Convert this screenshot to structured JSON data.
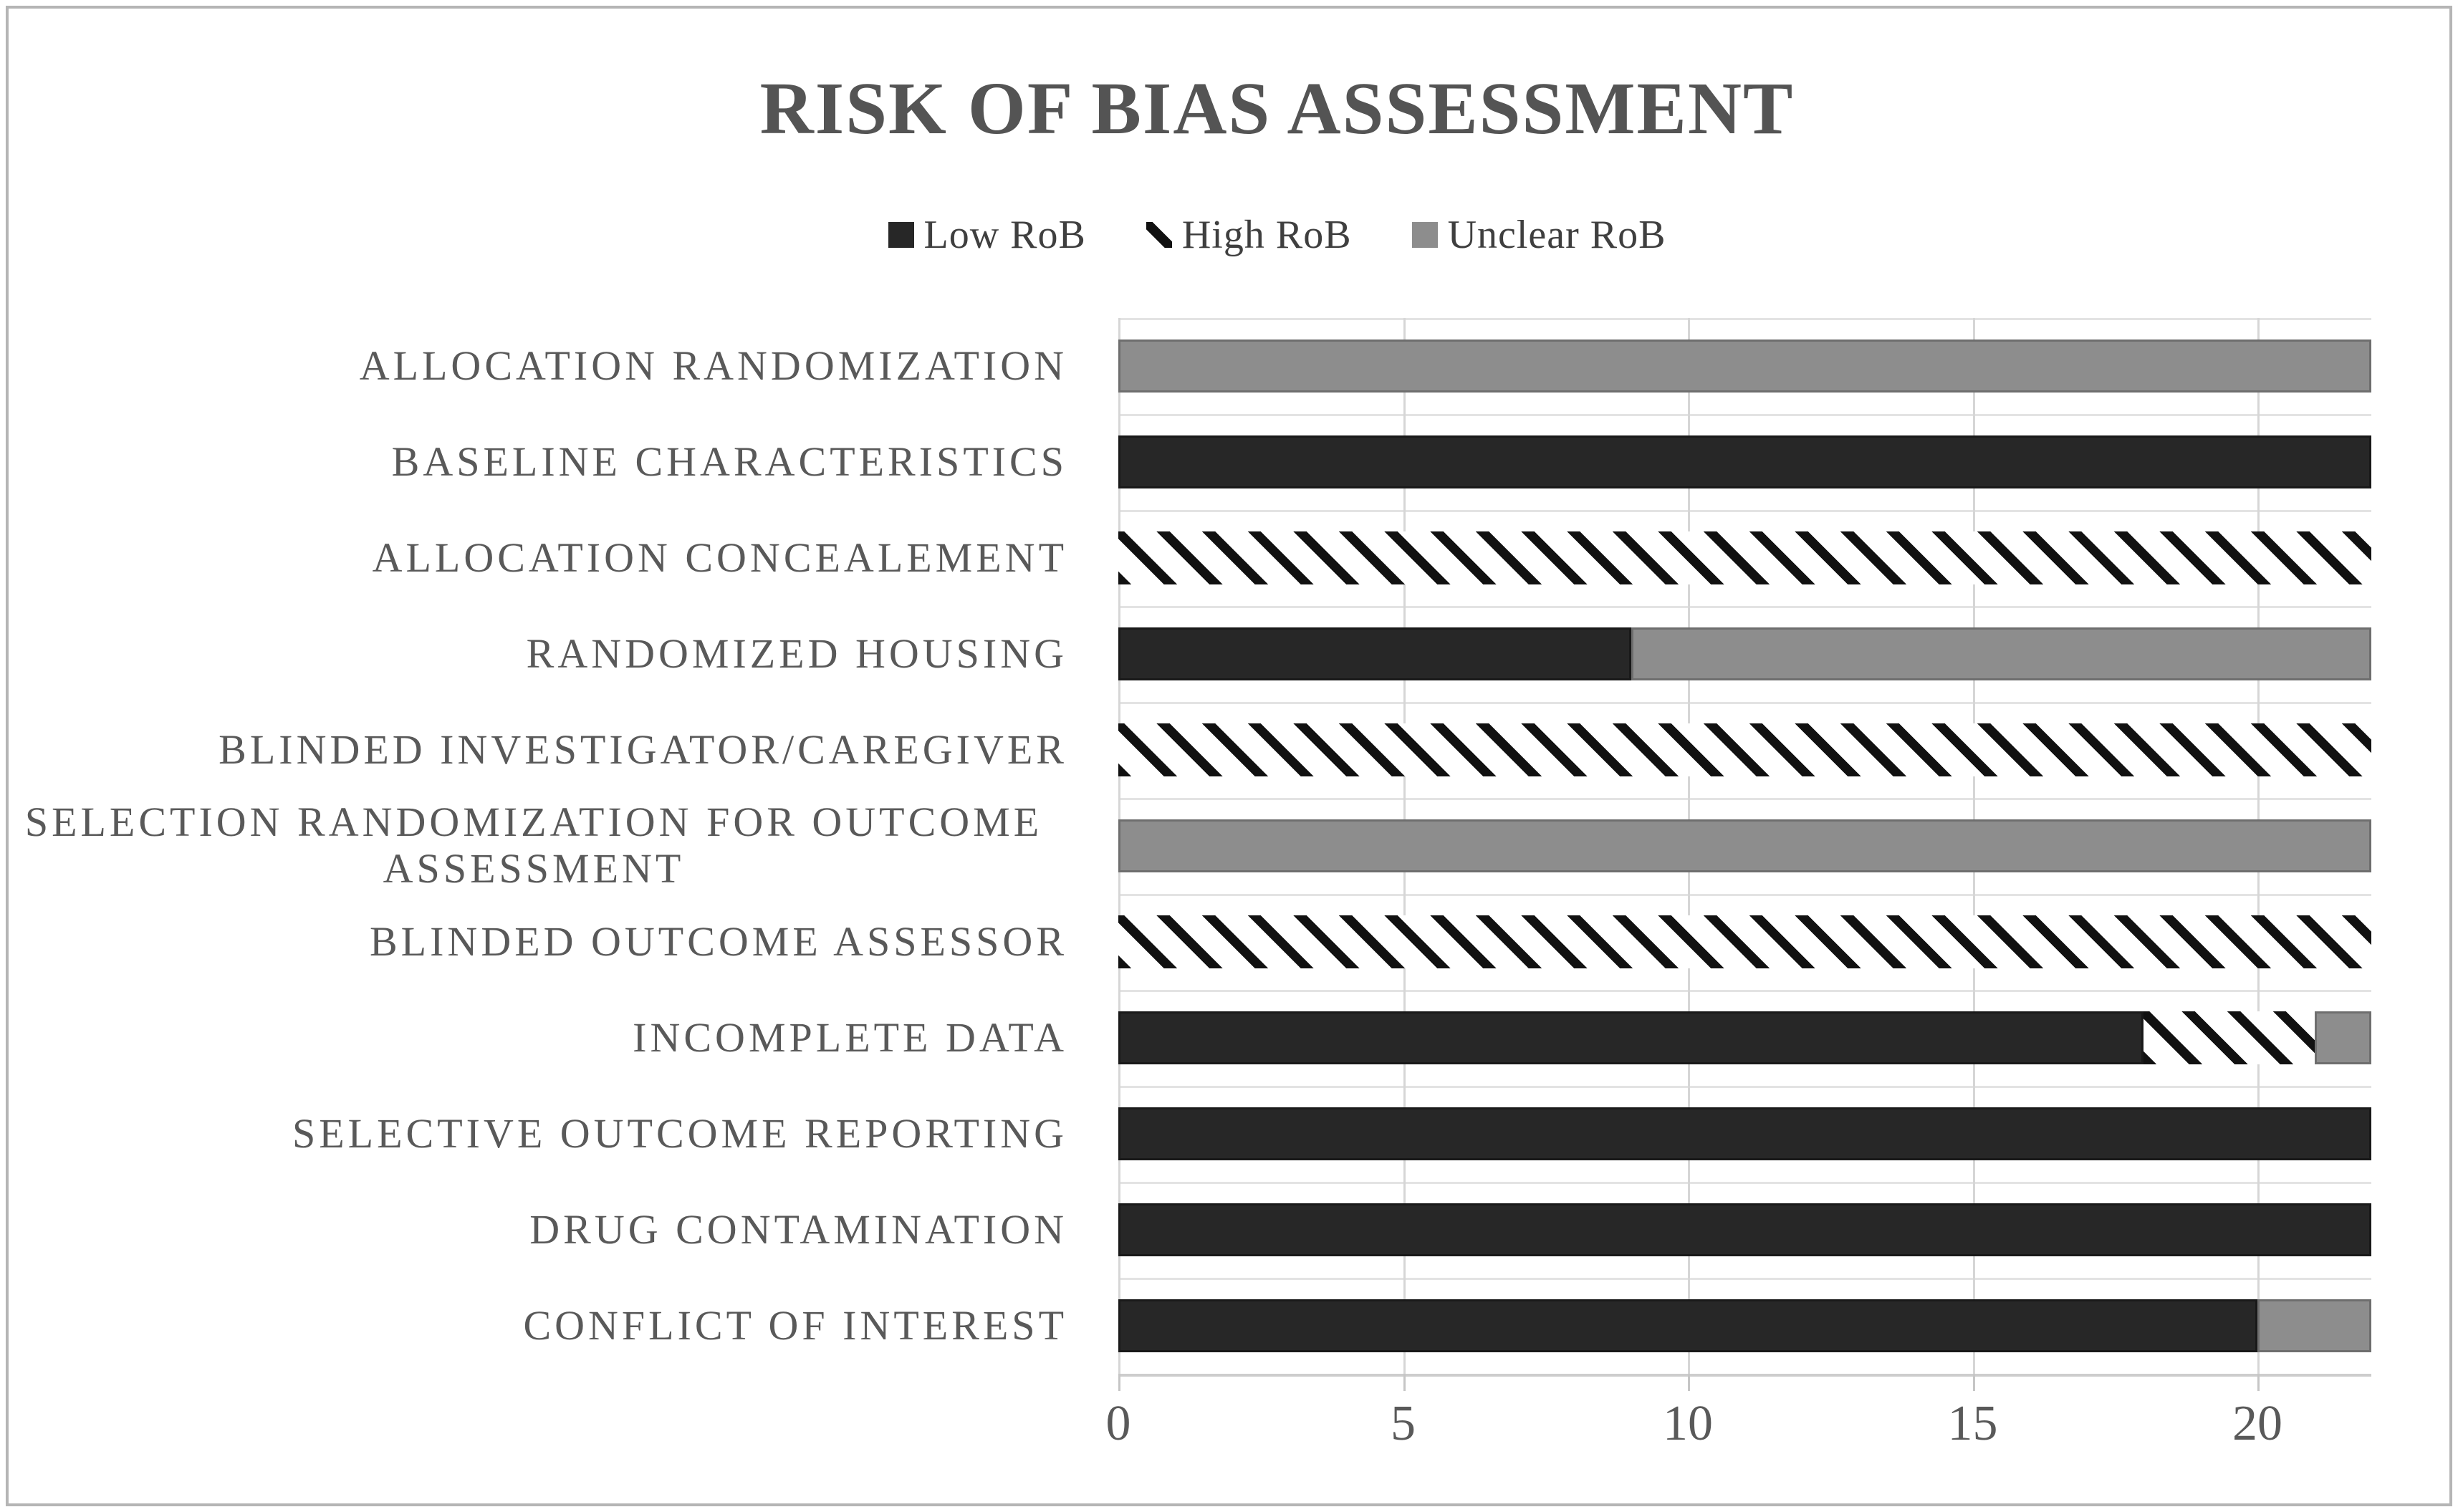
{
  "title": "RISK OF BIAS ASSESSMENT",
  "legend": {
    "items": [
      {
        "label": "Low RoB",
        "swatch": "low"
      },
      {
        "label": "High RoB",
        "swatch": "high"
      },
      {
        "label": "Unclear RoB",
        "swatch": "unclear"
      }
    ]
  },
  "colors": {
    "low_bar": "#272727",
    "unclear_bar": "#8d8d8d",
    "hatch_stroke": "#111111",
    "gridline": "#d6d6d6",
    "title_text": "#545454",
    "label_text": "#595959"
  },
  "x_axis": {
    "ticks": [
      0,
      5,
      10,
      15,
      20
    ],
    "max": 22
  },
  "chart_data": {
    "type": "bar",
    "orientation": "horizontal",
    "stacked": true,
    "title": "RISK OF BIAS ASSESSMENT",
    "xlabel": "",
    "ylabel": "",
    "xlim": [
      0,
      22
    ],
    "x_ticks": [
      0,
      5,
      10,
      15,
      20
    ],
    "grid": true,
    "legend_position": "top-center",
    "categories": [
      "ALLOCATION RANDOMIZATION",
      "BASELINE CHARACTERISTICS",
      "ALLOCATION CONCEALEMENT",
      "RANDOMIZED HOUSING",
      "BLINDED INVESTIGATOR/CAREGIVER",
      "SELECTION RANDOMIZATION FOR OUTCOME ASSESSMENT",
      "BLINDED OUTCOME ASSESSOR",
      "INCOMPLETE DATA",
      "SELECTIVE OUTCOME REPORTING",
      "DRUG CONTAMINATION",
      "CONFLICT OF INTEREST"
    ],
    "series": [
      {
        "name": "Low RoB",
        "style": "solid-dark",
        "values": [
          0,
          22,
          0,
          9,
          0,
          0,
          0,
          18,
          22,
          22,
          20
        ]
      },
      {
        "name": "High RoB",
        "style": "diagonal-hatch",
        "values": [
          0,
          0,
          22,
          0,
          22,
          0,
          22,
          3,
          0,
          0,
          0
        ]
      },
      {
        "name": "Unclear RoB",
        "style": "solid-gray",
        "values": [
          22,
          0,
          0,
          13,
          0,
          22,
          0,
          1,
          0,
          0,
          2
        ]
      }
    ]
  }
}
